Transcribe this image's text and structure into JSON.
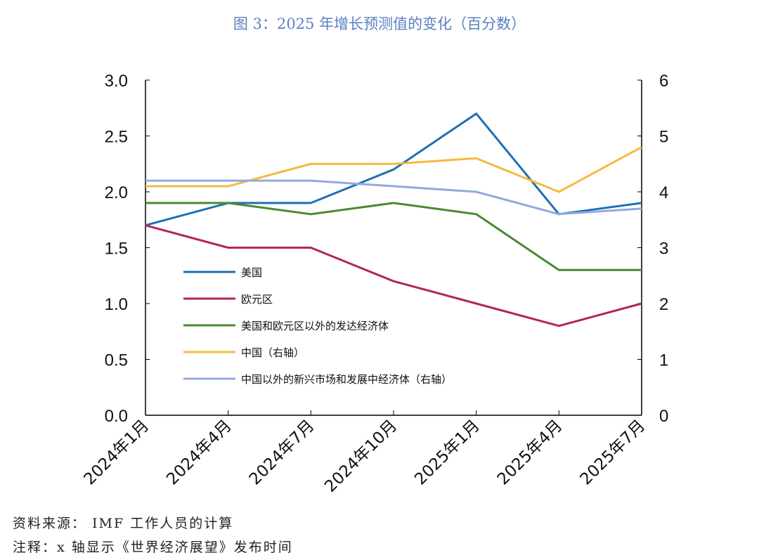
{
  "chart_data": {
    "type": "line",
    "title": "图 3：2025 年增长预测值的变化（百分数）",
    "categories": [
      "2024年1月",
      "2024年4月",
      "2024年7月",
      "2024年10月",
      "2025年1月",
      "2025年4月",
      "2025年7月"
    ],
    "left_axis": {
      "range": [
        0,
        3.0
      ],
      "ticks": [
        "0.0",
        "0.5",
        "1.0",
        "1.5",
        "2.0",
        "2.5",
        "3.0"
      ]
    },
    "right_axis": {
      "range": [
        0,
        6
      ],
      "ticks": [
        "0",
        "1",
        "2",
        "3",
        "4",
        "5",
        "6"
      ]
    },
    "grid": false,
    "legend_placement": "center-left inside plot",
    "series": [
      {
        "name": "美国",
        "axis": "left",
        "color": "#1f6fb5",
        "values": [
          1.7,
          1.9,
          1.9,
          2.2,
          2.7,
          1.8,
          1.9
        ]
      },
      {
        "name": "欧元区",
        "axis": "left",
        "color": "#b5245c",
        "values": [
          1.7,
          1.5,
          1.5,
          1.2,
          1.0,
          0.8,
          1.0
        ]
      },
      {
        "name": "美国和欧元区以外的发达经济体",
        "axis": "left",
        "color": "#4a8a2e",
        "values": [
          1.9,
          1.9,
          1.8,
          1.9,
          1.8,
          1.3,
          1.3
        ]
      },
      {
        "name": "中国（右轴）",
        "axis": "right",
        "color": "#f6b940",
        "values": [
          4.1,
          4.1,
          4.5,
          4.5,
          4.6,
          4.0,
          4.8
        ]
      },
      {
        "name": "中国以外的新兴市场和发展中经济体（右轴）",
        "axis": "right",
        "color": "#94a9dc",
        "values": [
          4.2,
          4.2,
          4.2,
          4.1,
          4.0,
          3.6,
          3.7
        ]
      }
    ]
  },
  "notes": {
    "source": "资料来源：  IMF 工作人员的计算",
    "note": "注释：x 轴显示《世界经济展望》发布时间"
  }
}
